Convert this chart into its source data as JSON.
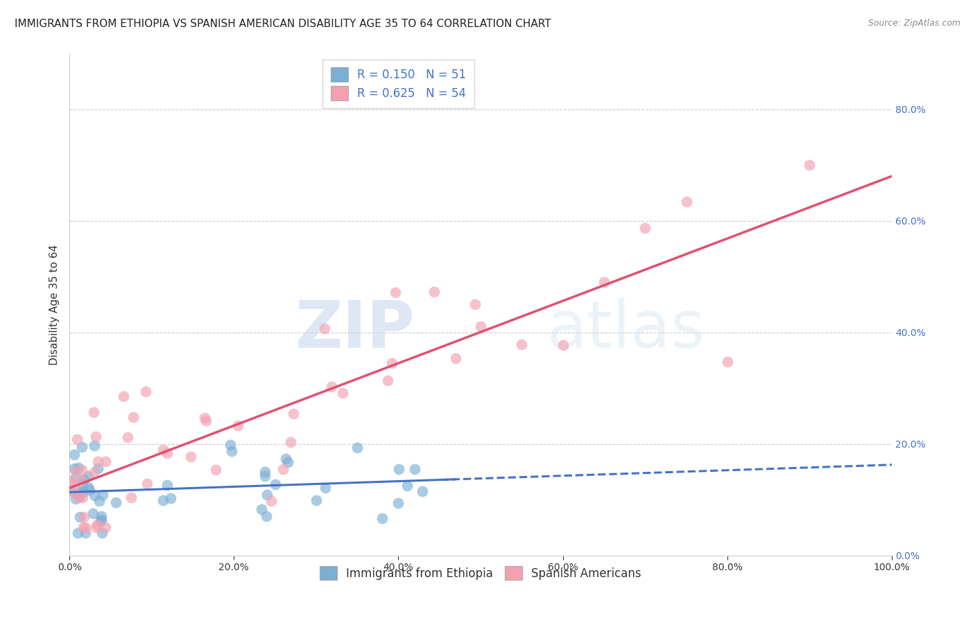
{
  "title": "IMMIGRANTS FROM ETHIOPIA VS SPANISH AMERICAN DISABILITY AGE 35 TO 64 CORRELATION CHART",
  "source": "Source: ZipAtlas.com",
  "ylabel": "Disability Age 35 to 64",
  "R_ethiopia": 0.15,
  "N_ethiopia": 51,
  "R_spanish": 0.625,
  "N_spanish": 54,
  "color_ethiopia": "#7bafd4",
  "color_spanish": "#f4a0b0",
  "line_color_ethiopia": "#4472c4",
  "line_color_spanish": "#e05070",
  "watermark_zip": "ZIP",
  "watermark_atlas": "atlas",
  "xlim": [
    0,
    100
  ],
  "ylim": [
    0,
    90
  ],
  "xticklabels": [
    "0.0%",
    "20.0%",
    "40.0%",
    "60.0%",
    "80.0%",
    "100.0%"
  ],
  "yticks_right": [
    0,
    20,
    40,
    60,
    80
  ],
  "yticklabels_right": [
    "0.0%",
    "20.0%",
    "40.0%",
    "60.0%",
    "80.0%"
  ],
  "grid_color": "#cccccc",
  "background_color": "#ffffff",
  "title_fontsize": 11,
  "label_fontsize": 11,
  "tick_fontsize": 10,
  "legend_fontsize": 12
}
